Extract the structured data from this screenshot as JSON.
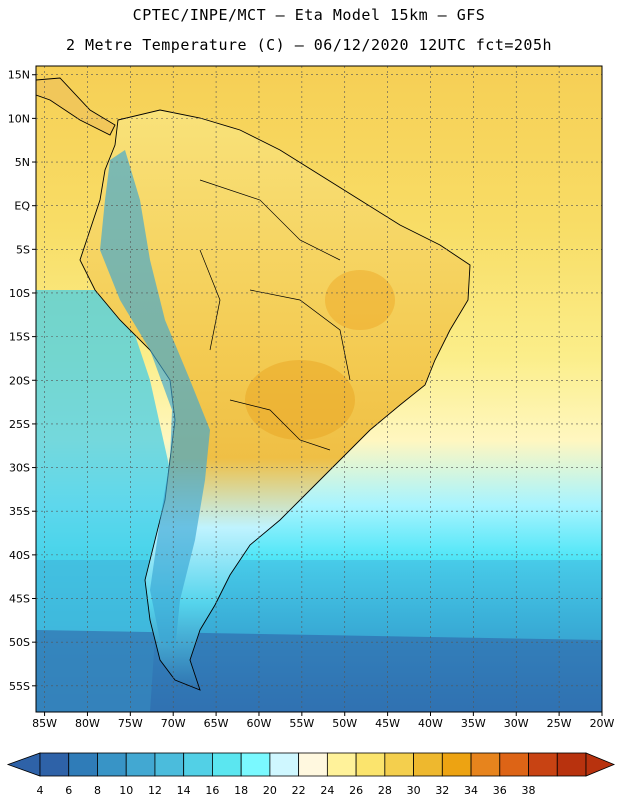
{
  "header": {
    "line1": "CPTEC/INPE/MCT –  Eta Model 15km – GFS",
    "line2": "2 Metre Temperature (C) – 06/12/2020 12UTC fct=205h"
  },
  "map": {
    "lat_labels": [
      "15N",
      "10N",
      "5N",
      "EQ",
      "5S",
      "10S",
      "15S",
      "20S",
      "25S",
      "30S",
      "35S",
      "40S",
      "45S",
      "50S",
      "55S"
    ],
    "lon_labels": [
      "85W",
      "80W",
      "75W",
      "70W",
      "65W",
      "60W",
      "55W",
      "50W",
      "45W",
      "40W",
      "35W",
      "30W",
      "25W",
      "20W"
    ],
    "lat_range": [
      -58,
      16
    ],
    "lon_range": [
      -86,
      -20
    ],
    "ocean_gradient": [
      "#f6cf55",
      "#f8dd66",
      "#fbee8a",
      "#fff7c0",
      "#a7f4ff",
      "#51e6f7",
      "#3bb9dc",
      "#2f79b6"
    ],
    "land_color": "#f7d865"
  },
  "colorbar": {
    "labels": [
      "4",
      "6",
      "8",
      "10",
      "12",
      "14",
      "16",
      "18",
      "20",
      "22",
      "24",
      "26",
      "28",
      "30",
      "32",
      "34",
      "36",
      "38"
    ],
    "colors": [
      "#2e62a8",
      "#2f7cb8",
      "#3894c6",
      "#42a8d2",
      "#4bbcdc",
      "#52d0e6",
      "#5be6f0",
      "#7af9ff",
      "#cff7ff",
      "#fff8df",
      "#fff29a",
      "#fbe46d",
      "#f4cf4d",
      "#eeb82e",
      "#eda312",
      "#e7841d",
      "#dd6416",
      "#c84313",
      "#b8320e"
    ]
  }
}
